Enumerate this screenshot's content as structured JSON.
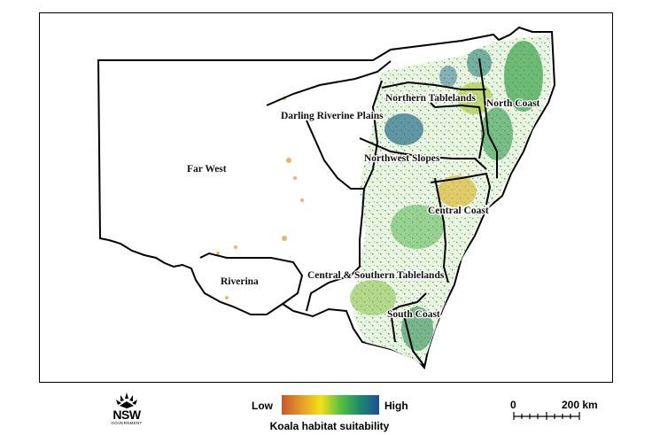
{
  "map": {
    "regions": [
      {
        "name": "Far West"
      },
      {
        "name": "Darling Riverine Plains"
      },
      {
        "name": "Northern Tablelands"
      },
      {
        "name": "North Coast"
      },
      {
        "name": "Northwest Slopes"
      },
      {
        "name": "Central Coast"
      },
      {
        "name": "Riverina"
      },
      {
        "name": "Central & Southern Tablelands"
      },
      {
        "name": "South Coast"
      }
    ]
  },
  "legend": {
    "low_label": "Low",
    "high_label": "High",
    "title": "Koala habitat suitability",
    "gradient_colors": [
      "#c9562e",
      "#e39a2a",
      "#f2e11a",
      "#59c043",
      "#1d8a6c",
      "#1f4f95"
    ]
  },
  "scalebar": {
    "start_label": "0",
    "end_label": "200 km"
  },
  "logo": {
    "text": "NSW",
    "subtext": "GOVERNMENT"
  }
}
